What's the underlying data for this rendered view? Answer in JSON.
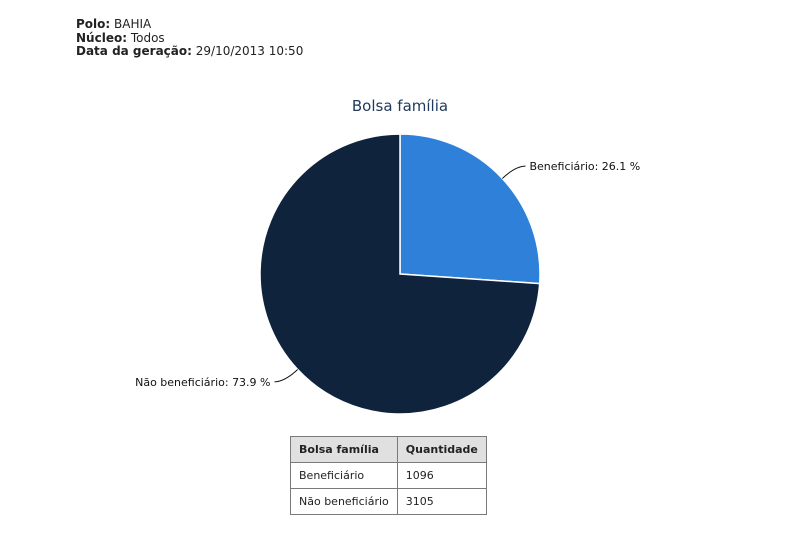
{
  "header": {
    "polo_label": "Polo:",
    "polo_value": "BAHIA",
    "nucleo_label": "Núcleo:",
    "nucleo_value": "Todos",
    "data_label": "Data da geração:",
    "data_value": "29/10/2013 10:50"
  },
  "chart_data": {
    "type": "pie",
    "title": "Bolsa família",
    "slices": [
      {
        "label": "Beneficiário",
        "value": 1096,
        "percent": 26.1,
        "display": "Beneficiário: 26.1 %",
        "color": "#2f80d8"
      },
      {
        "label": "Não beneficiário",
        "value": 3105,
        "percent": 73.9,
        "display": "Não beneficiário: 73.9 %",
        "color": "#0f233d"
      }
    ]
  },
  "table": {
    "headers": [
      "Bolsa família",
      "Quantidade"
    ],
    "rows": [
      [
        "Beneficiário",
        "1096"
      ],
      [
        "Não beneficiário",
        "3105"
      ]
    ]
  }
}
